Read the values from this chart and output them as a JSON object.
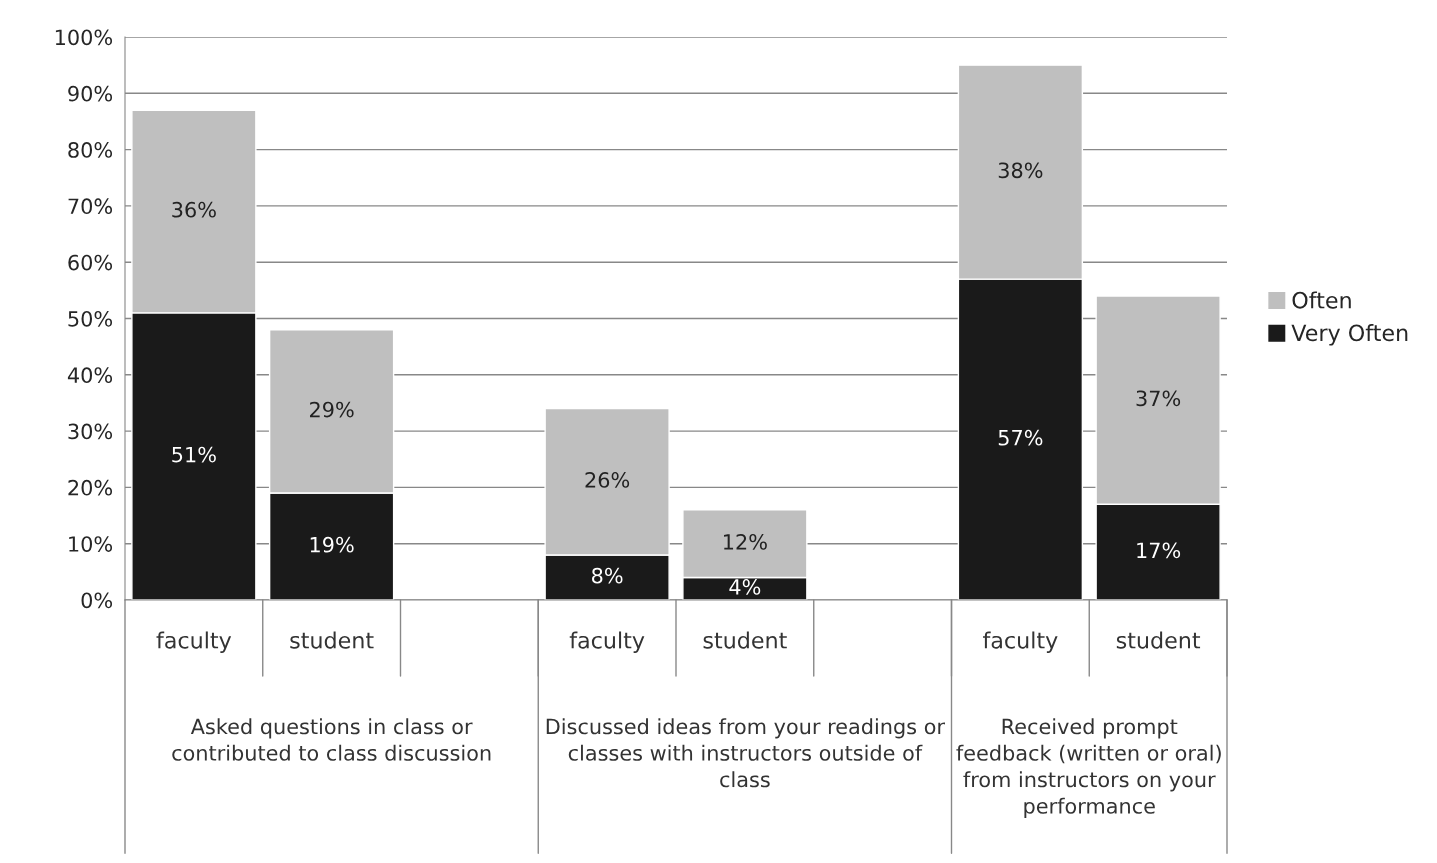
{
  "chart_data": {
    "type": "bar",
    "stacked": true,
    "categories": [
      "faculty",
      "student",
      null,
      "faculty",
      "student",
      null,
      "faculty",
      "student"
    ],
    "series": [
      {
        "name": "Very Often",
        "color": "#1a1a1a",
        "values": [
          51,
          19,
          null,
          8,
          4,
          null,
          57,
          17
        ],
        "value_labels": [
          "51%",
          "19%",
          null,
          "8%",
          "4%",
          null,
          "57%",
          "17%"
        ]
      },
      {
        "name": "Often",
        "color": "#bfbfbf",
        "values": [
          36,
          29,
          null,
          26,
          12,
          null,
          38,
          37
        ],
        "value_labels": [
          "36%",
          "29%",
          null,
          "26%",
          "12%",
          null,
          "38%",
          "37%"
        ]
      }
    ],
    "annotations": [
      "Asked questions in class or contributed to class discussion",
      "Discussed ideas from your readings or classes with instructors outside of class",
      "Received prompt feedback (written or oral) from instructors on your performance"
    ],
    "ylim": [
      0,
      100
    ],
    "yticks": [
      {
        "value": 0,
        "label": "0%"
      },
      {
        "value": 10,
        "label": "10%"
      },
      {
        "value": 20,
        "label": "20%"
      },
      {
        "value": 30,
        "label": "30%"
      },
      {
        "value": 40,
        "label": "40%"
      },
      {
        "value": 50,
        "label": "50%"
      },
      {
        "value": 60,
        "label": "60%"
      },
      {
        "value": 70,
        "label": "70%"
      },
      {
        "value": 80,
        "label": "80%"
      },
      {
        "value": 90,
        "label": "90%"
      },
      {
        "value": 100,
        "label": "100%"
      }
    ],
    "grid": "y",
    "legend": "right"
  }
}
